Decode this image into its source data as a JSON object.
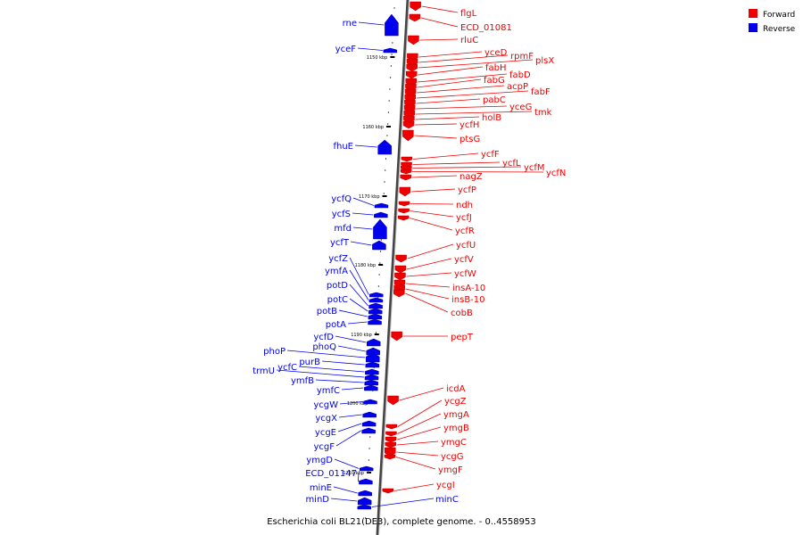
{
  "legend": {
    "forward": {
      "label": "Forward",
      "color": "#ee0000"
    },
    "reverse": {
      "label": "Reverse",
      "color": "#0000ee"
    }
  },
  "caption": "Escherichia coli BL21(DE3), complete genome. - 0..4558953",
  "scale_ticks": [
    "1150 kbp",
    "1160 kbp",
    "1170 kbp",
    "1180 kbp",
    "1190 kbp",
    "1200 kbp",
    "1210 kbp"
  ],
  "forward_genes": [
    "flgL",
    "ECD_01081",
    "rluC",
    "yceD",
    "rpmF",
    "plsX",
    "fabH",
    "fabD",
    "fabG",
    "acpP",
    "fabF",
    "pabC",
    "yceG",
    "tmk",
    "holB",
    "ycfH",
    "ptsG",
    "ycfF",
    "ycfL",
    "ycfM",
    "ycfN",
    "nagZ",
    "ycfP",
    "ndh",
    "ycfJ",
    "ycfR",
    "ycfU",
    "ycfV",
    "ycfW",
    "insA-10",
    "insB-10",
    "cobB",
    "pepT",
    "icdA",
    "ycgZ",
    "ymgA",
    "ymgB",
    "ymgC",
    "ycgG",
    "ymgF",
    "ycgI"
  ],
  "reverse_genes": [
    "rne",
    "yceF",
    "fhuE",
    "ycfQ",
    "ycfS",
    "mfd",
    "ycfT",
    "ycfZ",
    "ymfA",
    "potD",
    "potC",
    "potB",
    "potA",
    "ycfD",
    "phoQ",
    "phoP",
    "purB",
    "ycfC",
    "trmU",
    "ymfB",
    "ymfC",
    "ycgW",
    "ycgX",
    "ycgE",
    "ycgF",
    "ymgD",
    "ECD_01147",
    "minE",
    "minD",
    "minC"
  ]
}
